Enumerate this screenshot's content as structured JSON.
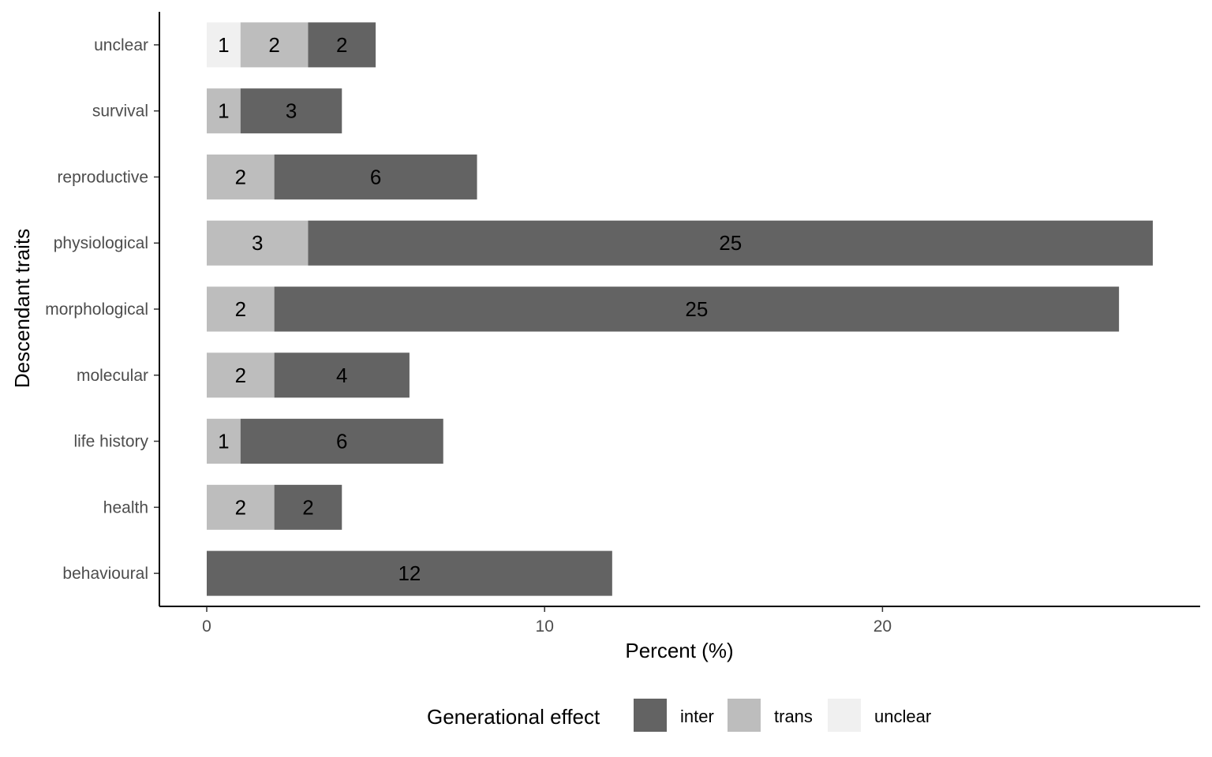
{
  "chart_data": {
    "type": "bar",
    "orientation": "horizontal",
    "stacked": true,
    "categories": [
      "behavioural",
      "health",
      "life history",
      "molecular",
      "morphological",
      "physiological",
      "reproductive",
      "survival",
      "unclear"
    ],
    "series": [
      {
        "name": "inter",
        "color": "#636363",
        "values": [
          12,
          2,
          6,
          4,
          25,
          25,
          6,
          3,
          2
        ]
      },
      {
        "name": "trans",
        "color": "#bdbdbd",
        "values": [
          0,
          2,
          1,
          2,
          2,
          3,
          2,
          1,
          2
        ]
      },
      {
        "name": "unclear",
        "color": "#f0f0f0",
        "values": [
          0,
          0,
          0,
          0,
          0,
          0,
          0,
          0,
          1
        ]
      }
    ],
    "stack_order": [
      "unclear",
      "trans",
      "inter"
    ],
    "xlabel": "Percent (%)",
    "ylabel": "Descendant traits",
    "xlim": [
      -1.4,
      29.4
    ],
    "xticks": [
      0,
      10,
      20
    ],
    "grid": false,
    "legend": {
      "title": "Generational effect",
      "position": "bottom"
    }
  }
}
